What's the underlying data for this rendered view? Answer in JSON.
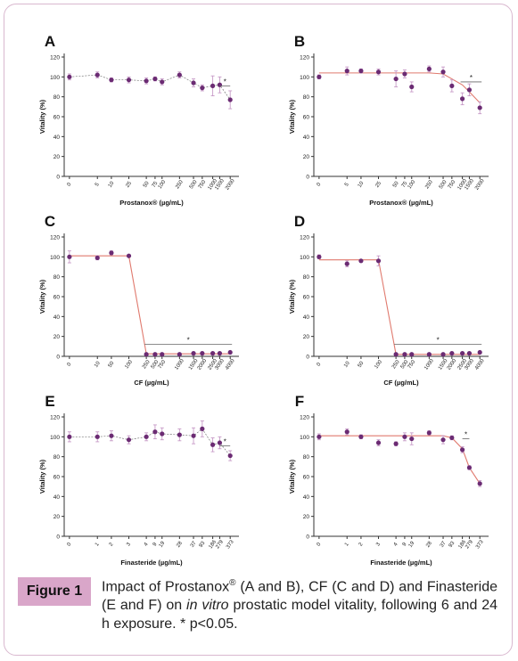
{
  "figure": {
    "badge": "Figure 1",
    "caption": {
      "part1": "Impact of Prostanox",
      "reg": "®",
      "part2": " (A and B), CF (C and D) and Finasteride (E and F) on ",
      "italic": "in vitro",
      "part3": " prostatic model vitality, following 6 and 24 h exposure. * p<0.05."
    }
  },
  "colors": {
    "marker": "#6b2b73",
    "fit": "#e07a6e",
    "errorbar": "#c79ac7",
    "sigline": "#666666",
    "axis": "#333333"
  },
  "chart_data": [
    {
      "panel": "A",
      "type": "scatter",
      "ylabel": "Vitality (%)",
      "xlabel": "Prostanox® (µg/mL)",
      "ylim": [
        0,
        120
      ],
      "yticks": [
        0,
        20,
        40,
        60,
        80,
        100,
        120
      ],
      "xticks": [
        "0",
        "5",
        "10",
        "25",
        "50",
        "75",
        "100",
        "250",
        "500",
        "750",
        "1000",
        "1500",
        "2000"
      ],
      "x": [
        "0",
        "5",
        "10",
        "25",
        "50",
        "75",
        "100",
        "250",
        "500",
        "750",
        "1000",
        "1500",
        "2000"
      ],
      "values": [
        100,
        102,
        97,
        97,
        96,
        98,
        95,
        102,
        94,
        89,
        91,
        92,
        77
      ],
      "errors": [
        3,
        3,
        2,
        3,
        3,
        2,
        3,
        3,
        4,
        3,
        10,
        8,
        9
      ],
      "line": "dashed",
      "sig_text": "*"
    },
    {
      "panel": "B",
      "type": "scatter",
      "ylabel": "Vitality (%)",
      "xlabel": "Prostanox® (µg/mL)",
      "ylim": [
        0,
        120
      ],
      "yticks": [
        0,
        20,
        40,
        60,
        80,
        100,
        120
      ],
      "xticks": [
        "0",
        "5",
        "10",
        "25",
        "50",
        "75",
        "100",
        "250",
        "500",
        "750",
        "1000",
        "1500",
        "2000"
      ],
      "x": [
        "0",
        "5",
        "10",
        "25",
        "50",
        "75",
        "100",
        "250",
        "500",
        "750",
        "1000",
        "1500",
        "2000"
      ],
      "values": [
        100,
        106,
        106,
        105,
        98,
        103,
        90,
        108,
        105,
        91,
        78,
        87,
        69
      ],
      "errors": [
        2,
        4,
        2,
        3,
        8,
        4,
        5,
        3,
        5,
        6,
        6,
        6,
        6
      ],
      "fit": [
        104,
        104,
        104,
        104,
        104,
        104,
        104,
        104,
        103,
        98,
        92,
        85,
        74
      ],
      "line": "fit",
      "sig_text": "*"
    },
    {
      "panel": "C",
      "type": "scatter",
      "ylabel": "Vitality (%)",
      "xlabel": "CF (µg/mL)",
      "ylim": [
        0,
        120
      ],
      "yticks": [
        0,
        20,
        40,
        60,
        80,
        100,
        120
      ],
      "xticks": [
        "0",
        "10",
        "50",
        "100",
        "250",
        "500",
        "750",
        "1000",
        "1500",
        "2000",
        "2500",
        "3000",
        "4000"
      ],
      "x": [
        "0",
        "10",
        "50",
        "100",
        "250",
        "500",
        "750",
        "1000",
        "1500",
        "2000",
        "2500",
        "3000",
        "4000"
      ],
      "values": [
        100,
        99,
        104,
        101,
        2,
        2,
        2,
        2,
        3,
        3,
        3,
        3,
        4
      ],
      "errors": [
        6,
        2,
        2,
        1,
        0.5,
        0.5,
        0.5,
        0.5,
        0.5,
        0.5,
        0.5,
        0.5,
        1
      ],
      "fit": [
        101,
        101,
        101,
        101,
        2.5,
        2.5,
        2.5,
        2.5,
        2.5,
        2.5,
        2.5,
        2.5,
        2.5
      ],
      "line": "fit",
      "sig_text": "*"
    },
    {
      "panel": "D",
      "type": "scatter",
      "ylabel": "Vitality (%)",
      "xlabel": "CF (µg/mL)",
      "ylim": [
        0,
        120
      ],
      "yticks": [
        0,
        20,
        40,
        60,
        80,
        100,
        120
      ],
      "xticks": [
        "0",
        "10",
        "50",
        "100",
        "250",
        "500",
        "750",
        "1000",
        "1500",
        "2000",
        "2500",
        "3000",
        "4000"
      ],
      "x": [
        "0",
        "10",
        "50",
        "100",
        "250",
        "500",
        "750",
        "1000",
        "1500",
        "2000",
        "2500",
        "3000",
        "4000"
      ],
      "values": [
        100,
        93,
        96,
        96,
        2,
        2,
        2,
        2,
        2,
        3,
        3,
        3,
        4
      ],
      "errors": [
        2,
        3,
        1,
        5,
        0.5,
        0.5,
        0.5,
        0.5,
        0.5,
        0.5,
        0.5,
        0.5,
        1
      ],
      "fit": [
        97,
        97,
        97,
        97,
        2,
        2,
        2,
        2,
        2,
        2,
        2,
        2,
        2
      ],
      "line": "fit",
      "sig_text": "*"
    },
    {
      "panel": "E",
      "type": "scatter",
      "ylabel": "Vitality (%)",
      "xlabel": "Finasteride (µg/mL)",
      "ylim": [
        0,
        120
      ],
      "yticks": [
        0,
        20,
        40,
        60,
        80,
        100,
        120
      ],
      "xticks": [
        "0",
        "1",
        "2",
        "3",
        "4",
        "9",
        "19",
        "28",
        "37",
        "93",
        "186",
        "279",
        "373"
      ],
      "x": [
        "0",
        "1",
        "2",
        "3",
        "4",
        "9",
        "19",
        "28",
        "37",
        "93",
        "186",
        "279",
        "373"
      ],
      "values": [
        100,
        100,
        101,
        97,
        100,
        105,
        103,
        102,
        101,
        108,
        92,
        94,
        81
      ],
      "errors": [
        5,
        5,
        5,
        4,
        4,
        7,
        6,
        6,
        8,
        8,
        7,
        6,
        5
      ],
      "line": "dashed",
      "sig_text": "*"
    },
    {
      "panel": "F",
      "type": "scatter",
      "ylabel": "Vitality (%)",
      "xlabel": "Finasteride (µg/mL)",
      "ylim": [
        0,
        120
      ],
      "yticks": [
        0,
        20,
        40,
        60,
        80,
        100,
        120
      ],
      "xticks": [
        "0",
        "1",
        "2",
        "3",
        "4",
        "9",
        "19",
        "28",
        "37",
        "93",
        "186",
        "279",
        "373"
      ],
      "x": [
        "0",
        "1",
        "2",
        "3",
        "4",
        "9",
        "19",
        "28",
        "37",
        "93",
        "186",
        "279",
        "373"
      ],
      "values": [
        100,
        105,
        100,
        94,
        93,
        100,
        98,
        104,
        97,
        99,
        87,
        69,
        53
      ],
      "errors": [
        3,
        3,
        2,
        3,
        2,
        4,
        6,
        2,
        4,
        2,
        3,
        2,
        3
      ],
      "fit": [
        101,
        101,
        101,
        101,
        101,
        101,
        101,
        101,
        101,
        99,
        88,
        69,
        53
      ],
      "line": "fit",
      "sig_text": "*"
    }
  ]
}
